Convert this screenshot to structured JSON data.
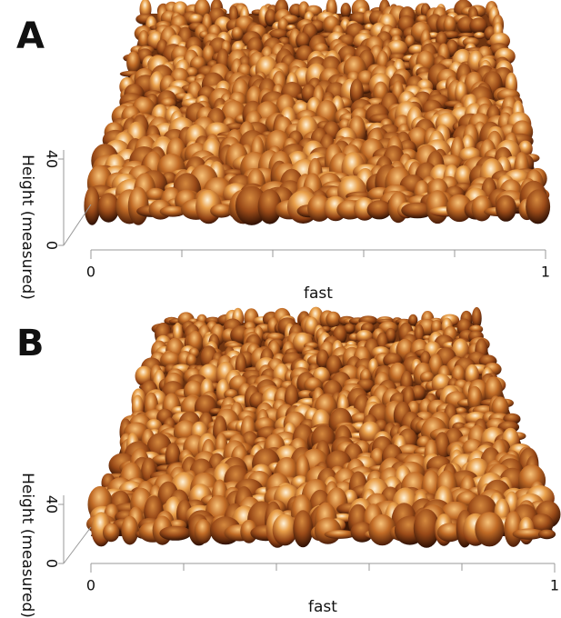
{
  "chart_data": [
    {
      "type": "surface",
      "panel_label": "A",
      "xlabel": "fast",
      "zlabel": "Height (measured)",
      "xlim": [
        0,
        1
      ],
      "xticks": [
        0,
        1
      ],
      "zlim": [
        0,
        40
      ],
      "zticks": [
        0,
        40
      ]
    },
    {
      "type": "surface",
      "panel_label": "B",
      "xlabel": "fast",
      "zlabel": "Height (measured)",
      "xlim": [
        0,
        1
      ],
      "xticks": [
        0,
        1
      ],
      "zlim": [
        0,
        40
      ],
      "zticks": [
        0,
        40
      ]
    }
  ]
}
